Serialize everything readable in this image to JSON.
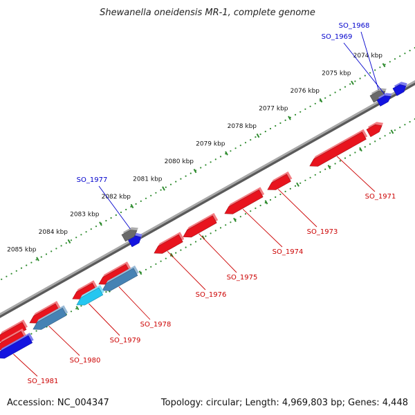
{
  "title": "Shewanella oneidensis MR-1, complete genome",
  "accession": "Accession: NC_004347",
  "summary": "Topology: circular; Length: 4,969,803 bp; Genes: 4,448",
  "colors": {
    "background": "#ffffff",
    "backbone": "#8c8c8c",
    "tick_ring": "#2e8b2e",
    "gene_red": "#e8141e",
    "gene_blue": "#1414e0",
    "gene_gray": "#6a6a6a",
    "gene_cyan": "#25c6f0",
    "gene_steel": "#4682b4",
    "label_red": "#cc0000",
    "label_blue": "#0000cc"
  },
  "scale": {
    "unit": "kbp",
    "ticks": [
      {
        "value": 2074,
        "label": "2074 kbp"
      },
      {
        "value": 2075,
        "label": "2075 kbp"
      },
      {
        "value": 2076,
        "label": "2076 kbp"
      },
      {
        "value": 2077,
        "label": "2077 kbp"
      },
      {
        "value": 2078,
        "label": "2078 kbp"
      },
      {
        "value": 2079,
        "label": "2079 kbp"
      },
      {
        "value": 2080,
        "label": "2080 kbp"
      },
      {
        "value": 2081,
        "label": "2081 kbp"
      },
      {
        "value": 2082,
        "label": "2082 kbp"
      },
      {
        "value": 2083,
        "label": "2083 kbp"
      },
      {
        "value": 2084,
        "label": "2084 kbp"
      },
      {
        "value": 2085,
        "label": "2085 kbp"
      }
    ]
  },
  "genes": [
    {
      "label": "SO_1968",
      "strand": "forward",
      "color": "gray",
      "labeled": true
    },
    {
      "label": "SO_1969",
      "strand": "forward",
      "color": "blue",
      "labeled": true
    },
    {
      "label": "SO_1971",
      "strand": "reverse",
      "color": "red",
      "labeled": true
    },
    {
      "label": "SO_1973",
      "strand": "reverse",
      "color": "red",
      "labeled": true
    },
    {
      "label": "SO_1974",
      "strand": "reverse",
      "color": "red",
      "labeled": true
    },
    {
      "label": "SO_1975",
      "strand": "reverse",
      "color": "red",
      "labeled": true
    },
    {
      "label": "SO_1976",
      "strand": "reverse",
      "color": "red",
      "labeled": true
    },
    {
      "label": "SO_1977",
      "strand": "forward",
      "color": "gray",
      "labeled": true
    },
    {
      "label": "SO_1978",
      "strand": "reverse",
      "color": "steel",
      "labeled": true
    },
    {
      "label": "SO_1979",
      "strand": "reverse",
      "color": "cyan",
      "labeled": true
    },
    {
      "label": "SO_1980",
      "strand": "reverse",
      "color": "steel",
      "labeled": true
    },
    {
      "label": "SO_1981",
      "strand": "reverse",
      "color": "blue",
      "labeled": true
    }
  ]
}
